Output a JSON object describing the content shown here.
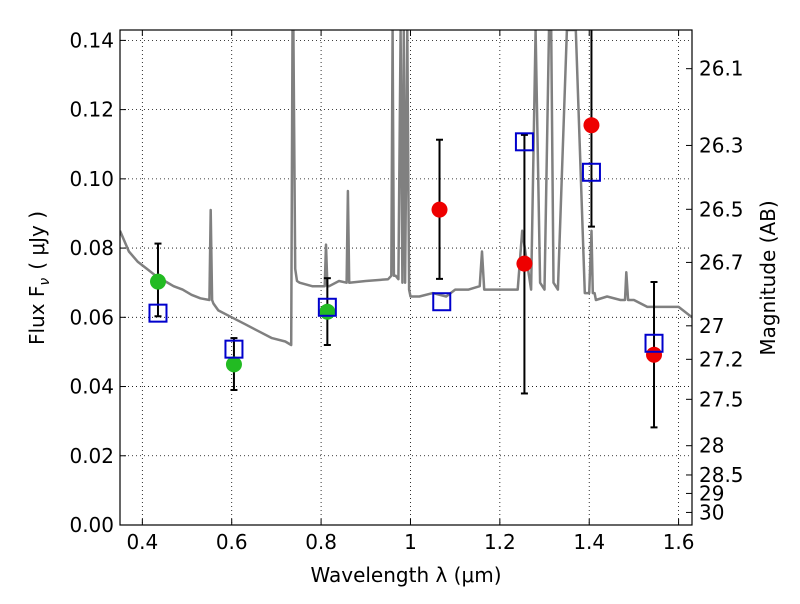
{
  "chart_data": {
    "type": "scatter",
    "xlabel": "Wavelength  λ (μm)",
    "ylabel": "Flux  F",
    "ylabel_sub": "ν",
    "ylabel_unit": "( μJy )",
    "y2label": "Magnitude (AB)",
    "xlim": [
      0.35,
      1.63
    ],
    "ylim": [
      0.0,
      0.143
    ],
    "x_ticks": [
      0.4,
      0.6,
      0.8,
      1.0,
      1.2,
      1.4,
      1.6
    ],
    "x_tick_labels": [
      "0.4",
      "0.6",
      "0.8",
      "1",
      "1.2",
      "1.4",
      "1.6"
    ],
    "y_ticks": [
      0.0,
      0.02,
      0.04,
      0.06,
      0.08,
      0.1,
      0.12,
      0.14
    ],
    "y_tick_labels": [
      "0.00",
      "0.02",
      "0.04",
      "0.06",
      "0.08",
      "0.10",
      "0.12",
      "0.14"
    ],
    "magnitude_ticks": [
      "26.1",
      "26.3",
      "26.5",
      "26.7",
      "27",
      "27.2",
      "27.5",
      "28",
      "28.5",
      "29",
      "30"
    ],
    "grid": true,
    "colors": {
      "model": "#808080",
      "green": "#22bb22",
      "red": "#ee0000",
      "blue": "#0000cc",
      "errorbar": "#000000"
    },
    "series": [
      {
        "marker": "circle",
        "color": "green",
        "points": [
          {
            "x": 0.435,
            "y": 0.0703,
            "err_lo": 0.0603,
            "err_hi": 0.0813
          },
          {
            "x": 0.605,
            "y": 0.0464,
            "err_lo": 0.039,
            "err_hi": 0.054
          },
          {
            "x": 0.814,
            "y": 0.0616,
            "err_lo": 0.052,
            "err_hi": 0.0713
          }
        ]
      },
      {
        "marker": "circle",
        "color": "red",
        "points": [
          {
            "x": 1.065,
            "y": 0.0911,
            "err_lo": 0.0711,
            "err_hi": 0.1113
          },
          {
            "x": 1.255,
            "y": 0.0755,
            "err_lo": 0.038,
            "err_hi": 0.1127
          },
          {
            "x": 1.405,
            "y": 0.1155,
            "err_lo": 0.0862,
            "err_hi": 0.148
          },
          {
            "x": 1.545,
            "y": 0.0492,
            "err_lo": 0.0282,
            "err_hi": 0.0702
          }
        ]
      },
      {
        "marker": "open-square",
        "color": "blue",
        "points": [
          {
            "x": 0.435,
            "y": 0.0612
          },
          {
            "x": 0.605,
            "y": 0.0508
          },
          {
            "x": 0.814,
            "y": 0.0629
          },
          {
            "x": 1.07,
            "y": 0.0645
          },
          {
            "x": 1.255,
            "y": 0.1107
          },
          {
            "x": 1.405,
            "y": 0.1019
          },
          {
            "x": 1.545,
            "y": 0.0525
          }
        ]
      }
    ],
    "model_spectrum": {
      "x": [
        0.35,
        0.37,
        0.39,
        0.41,
        0.43,
        0.45,
        0.47,
        0.49,
        0.51,
        0.53,
        0.55,
        0.553,
        0.556,
        0.559,
        0.57,
        0.6,
        0.63,
        0.66,
        0.69,
        0.72,
        0.733,
        0.736,
        0.738,
        0.742,
        0.746,
        0.752,
        0.78,
        0.808,
        0.811,
        0.814,
        0.818,
        0.84,
        0.857,
        0.86,
        0.863,
        0.9,
        0.95,
        0.957,
        0.96,
        0.963,
        0.967,
        0.973,
        0.978,
        0.982,
        0.985,
        0.988,
        0.993,
        0.997,
        1.0,
        1.02,
        1.05,
        1.08,
        1.1,
        1.13,
        1.155,
        1.16,
        1.165,
        1.2,
        1.24,
        1.25,
        1.27,
        1.28,
        1.29,
        1.3,
        1.31,
        1.315,
        1.32,
        1.33,
        1.35,
        1.37,
        1.39,
        1.4,
        1.405,
        1.408,
        1.41,
        1.412,
        1.415,
        1.44,
        1.47,
        1.48,
        1.483,
        1.487,
        1.5,
        1.53,
        1.56,
        1.6,
        1.63
      ],
      "y": [
        0.085,
        0.079,
        0.076,
        0.074,
        0.072,
        0.0705,
        0.069,
        0.068,
        0.0665,
        0.0655,
        0.065,
        0.091,
        0.065,
        0.064,
        0.062,
        0.06,
        0.058,
        0.056,
        0.054,
        0.053,
        0.052,
        0.143,
        0.143,
        0.074,
        0.0705,
        0.07,
        0.069,
        0.069,
        0.081,
        0.069,
        0.069,
        0.0705,
        0.07,
        0.0965,
        0.07,
        0.0705,
        0.071,
        0.072,
        0.143,
        0.072,
        0.072,
        0.071,
        0.143,
        0.07,
        0.143,
        0.07,
        0.143,
        0.068,
        0.066,
        0.066,
        0.067,
        0.066,
        0.068,
        0.068,
        0.069,
        0.079,
        0.068,
        0.068,
        0.068,
        0.085,
        0.068,
        0.143,
        0.07,
        0.068,
        0.143,
        0.143,
        0.07,
        0.068,
        0.143,
        0.143,
        0.067,
        0.067,
        0.085,
        0.067,
        0.067,
        0.067,
        0.065,
        0.066,
        0.065,
        0.065,
        0.073,
        0.065,
        0.065,
        0.063,
        0.063,
        0.063,
        0.06
      ]
    }
  }
}
